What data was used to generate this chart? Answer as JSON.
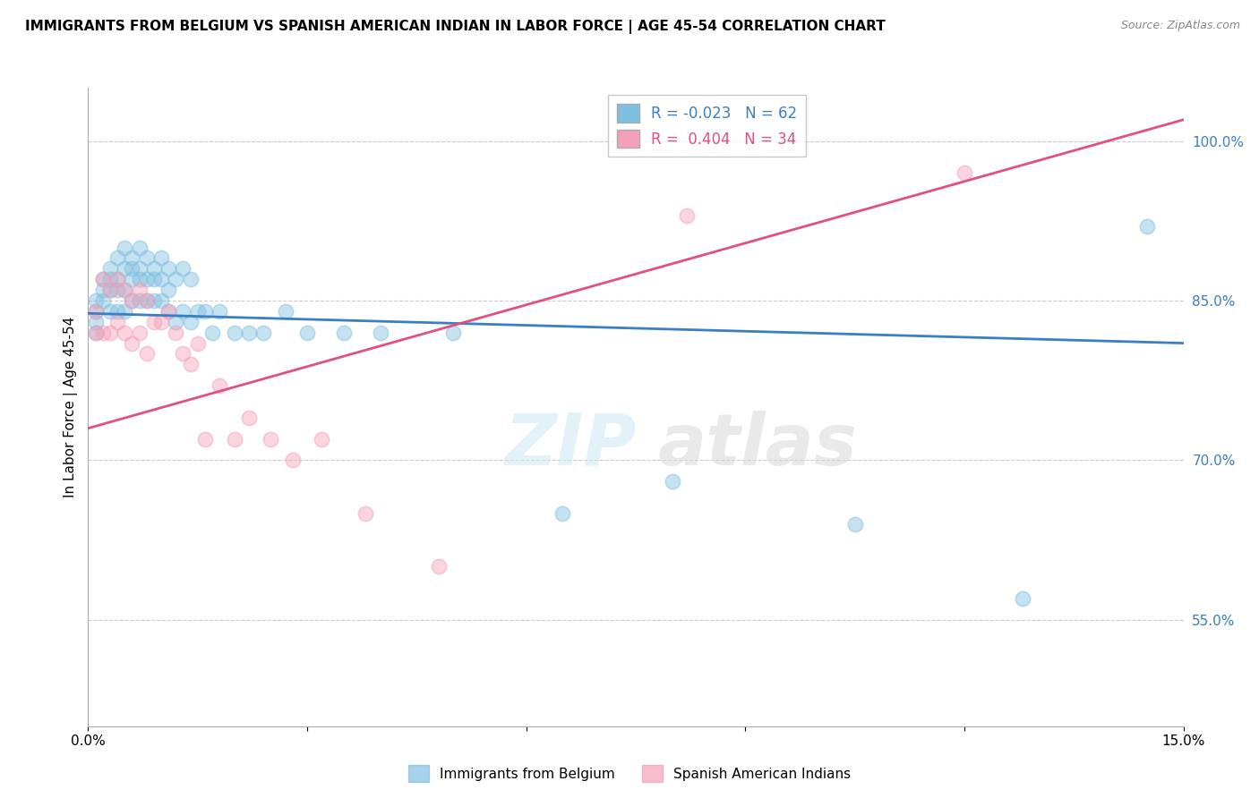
{
  "title": "IMMIGRANTS FROM BELGIUM VS SPANISH AMERICAN INDIAN IN LABOR FORCE | AGE 45-54 CORRELATION CHART",
  "source": "Source: ZipAtlas.com",
  "ylabel": "In Labor Force | Age 45-54",
  "xlim": [
    0.0,
    0.15
  ],
  "ylim": [
    0.45,
    1.05
  ],
  "ytick_labels_right": [
    "55.0%",
    "70.0%",
    "85.0%",
    "100.0%"
  ],
  "ytick_vals_right": [
    0.55,
    0.7,
    0.85,
    1.0
  ],
  "R_blue": -0.023,
  "N_blue": 62,
  "R_pink": 0.404,
  "N_pink": 34,
  "blue_color": "#7fbfdf",
  "pink_color": "#f4a0b8",
  "blue_line_color": "#3a7fc1",
  "pink_line_color": "#e05080",
  "legend_label_blue": "Immigrants from Belgium",
  "legend_label_pink": "Spanish American Indians",
  "blue_line_x0": 0.0,
  "blue_line_y0": 0.838,
  "blue_line_x1": 0.15,
  "blue_line_y1": 0.81,
  "pink_line_x0": 0.0,
  "pink_line_y0": 0.73,
  "pink_line_x1": 0.15,
  "pink_line_y1": 1.02,
  "blue_scatter_x": [
    0.001,
    0.001,
    0.001,
    0.001,
    0.002,
    0.002,
    0.002,
    0.003,
    0.003,
    0.003,
    0.003,
    0.004,
    0.004,
    0.004,
    0.004,
    0.005,
    0.005,
    0.005,
    0.005,
    0.006,
    0.006,
    0.006,
    0.006,
    0.007,
    0.007,
    0.007,
    0.007,
    0.008,
    0.008,
    0.008,
    0.009,
    0.009,
    0.009,
    0.01,
    0.01,
    0.01,
    0.011,
    0.011,
    0.011,
    0.012,
    0.012,
    0.013,
    0.013,
    0.014,
    0.014,
    0.015,
    0.016,
    0.017,
    0.018,
    0.02,
    0.022,
    0.024,
    0.027,
    0.03,
    0.035,
    0.04,
    0.05,
    0.065,
    0.08,
    0.105,
    0.128,
    0.145
  ],
  "blue_scatter_y": [
    0.85,
    0.84,
    0.83,
    0.82,
    0.87,
    0.86,
    0.85,
    0.88,
    0.87,
    0.86,
    0.84,
    0.89,
    0.87,
    0.86,
    0.84,
    0.9,
    0.88,
    0.86,
    0.84,
    0.89,
    0.88,
    0.87,
    0.85,
    0.9,
    0.88,
    0.87,
    0.85,
    0.89,
    0.87,
    0.85,
    0.88,
    0.87,
    0.85,
    0.89,
    0.87,
    0.85,
    0.88,
    0.86,
    0.84,
    0.87,
    0.83,
    0.88,
    0.84,
    0.87,
    0.83,
    0.84,
    0.84,
    0.82,
    0.84,
    0.82,
    0.82,
    0.82,
    0.84,
    0.82,
    0.82,
    0.82,
    0.82,
    0.65,
    0.68,
    0.64,
    0.57,
    0.92
  ],
  "pink_scatter_x": [
    0.001,
    0.001,
    0.002,
    0.002,
    0.003,
    0.003,
    0.004,
    0.004,
    0.005,
    0.005,
    0.006,
    0.006,
    0.007,
    0.007,
    0.008,
    0.008,
    0.009,
    0.01,
    0.011,
    0.012,
    0.013,
    0.014,
    0.015,
    0.016,
    0.018,
    0.02,
    0.022,
    0.025,
    0.028,
    0.032,
    0.038,
    0.048,
    0.082,
    0.12
  ],
  "pink_scatter_y": [
    0.84,
    0.82,
    0.87,
    0.82,
    0.86,
    0.82,
    0.87,
    0.83,
    0.86,
    0.82,
    0.85,
    0.81,
    0.86,
    0.82,
    0.85,
    0.8,
    0.83,
    0.83,
    0.84,
    0.82,
    0.8,
    0.79,
    0.81,
    0.72,
    0.77,
    0.72,
    0.74,
    0.72,
    0.7,
    0.72,
    0.65,
    0.6,
    0.93,
    0.97
  ]
}
